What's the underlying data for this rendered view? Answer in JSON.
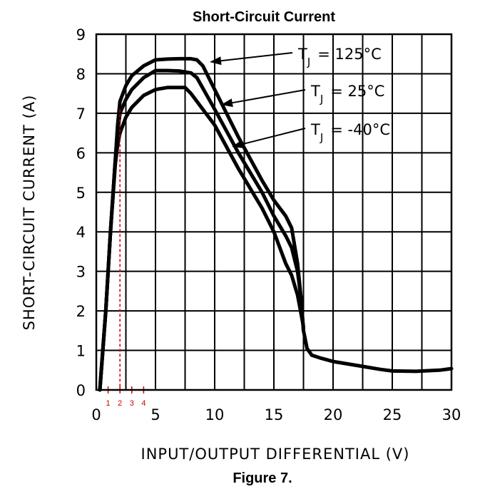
{
  "chart_data": {
    "type": "line",
    "title": "Short-Circuit Current",
    "caption": "Figure 7.",
    "xlabel": "INPUT/OUTPUT DIFFERENTIAL (V)",
    "ylabel": "SHORT-CIRCUIT CURRENT (A)",
    "xlim": [
      0,
      30
    ],
    "ylim": [
      0,
      9
    ],
    "xticks": [
      0,
      5,
      10,
      15,
      20,
      25,
      30
    ],
    "yticks": [
      0,
      1,
      2,
      3,
      4,
      5,
      6,
      7,
      8,
      9
    ],
    "grid": true,
    "series": [
      {
        "name": "TJ = 125°C",
        "points": [
          [
            0.3,
            0
          ],
          [
            0.8,
            2
          ],
          [
            1.2,
            4
          ],
          [
            1.6,
            5.8
          ],
          [
            1.8,
            6.7
          ],
          [
            2,
            7.3
          ],
          [
            2.5,
            7.7
          ],
          [
            3,
            7.95
          ],
          [
            4,
            8.2
          ],
          [
            5,
            8.35
          ],
          [
            6,
            8.37
          ],
          [
            7,
            8.38
          ],
          [
            8,
            8.38
          ],
          [
            8.5,
            8.35
          ],
          [
            9,
            8.2
          ],
          [
            10,
            7.6
          ],
          [
            12,
            6.4
          ],
          [
            14,
            5.3
          ],
          [
            15,
            4.8
          ],
          [
            16,
            4.4
          ],
          [
            16.5,
            4.1
          ],
          [
            17,
            3.2
          ],
          [
            17.3,
            2.3
          ],
          [
            17.5,
            1.5
          ],
          [
            17.8,
            1.05
          ],
          [
            18.2,
            0.88
          ],
          [
            19,
            0.8
          ],
          [
            20,
            0.72
          ],
          [
            22,
            0.62
          ],
          [
            24,
            0.52
          ],
          [
            25,
            0.48
          ],
          [
            27,
            0.47
          ],
          [
            29,
            0.5
          ],
          [
            30,
            0.54
          ]
        ]
      },
      {
        "name": "TJ = 25°C",
        "points": [
          [
            0.3,
            0
          ],
          [
            0.8,
            2
          ],
          [
            1.2,
            4
          ],
          [
            1.6,
            5.8
          ],
          [
            1.8,
            6.5
          ],
          [
            2,
            7
          ],
          [
            2.5,
            7.35
          ],
          [
            3,
            7.6
          ],
          [
            4,
            7.9
          ],
          [
            5,
            8.08
          ],
          [
            6,
            8.08
          ],
          [
            7,
            8.07
          ],
          [
            8,
            8.02
          ],
          [
            8.5,
            7.9
          ],
          [
            10,
            7.1
          ],
          [
            12,
            6.0
          ],
          [
            14,
            5.0
          ],
          [
            15,
            4.4
          ],
          [
            16,
            3.9
          ],
          [
            16.5,
            3.6
          ],
          [
            17,
            3.0
          ],
          [
            17.3,
            2.3
          ],
          [
            17.5,
            1.5
          ]
        ]
      },
      {
        "name": "TJ = -40°C",
        "points": [
          [
            0.3,
            0
          ],
          [
            0.8,
            2
          ],
          [
            1.2,
            4
          ],
          [
            1.6,
            5.7
          ],
          [
            1.8,
            6.2
          ],
          [
            2,
            6.5
          ],
          [
            2.5,
            6.9
          ],
          [
            3,
            7.15
          ],
          [
            4,
            7.45
          ],
          [
            5,
            7.6
          ],
          [
            6,
            7.65
          ],
          [
            7,
            7.65
          ],
          [
            7.5,
            7.65
          ],
          [
            8,
            7.5
          ],
          [
            10,
            6.7
          ],
          [
            12,
            5.6
          ],
          [
            14,
            4.6
          ],
          [
            15,
            4.0
          ],
          [
            16,
            3.2
          ],
          [
            16.5,
            2.9
          ],
          [
            17,
            2.4
          ],
          [
            17.5,
            1.6
          ]
        ]
      }
    ],
    "annotations": [
      {
        "label": "T",
        "subscript": "J",
        "value": "= 125°C",
        "series": "TJ = 125°C"
      },
      {
        "label": "T",
        "subscript": "J",
        "value": "= 25°C",
        "series": "TJ = 25°C"
      },
      {
        "label": "T",
        "subscript": "J",
        "value": "= -40°C",
        "series": "TJ = -40°C"
      }
    ],
    "reference": {
      "x_value": 2,
      "y_value": 7.1,
      "color": "#cc0000",
      "markers": [
        {
          "label": "1",
          "x": 1
        },
        {
          "label": "2",
          "x": 2
        },
        {
          "label": "3",
          "x": 3
        },
        {
          "label": "4",
          "x": 4
        }
      ]
    }
  }
}
